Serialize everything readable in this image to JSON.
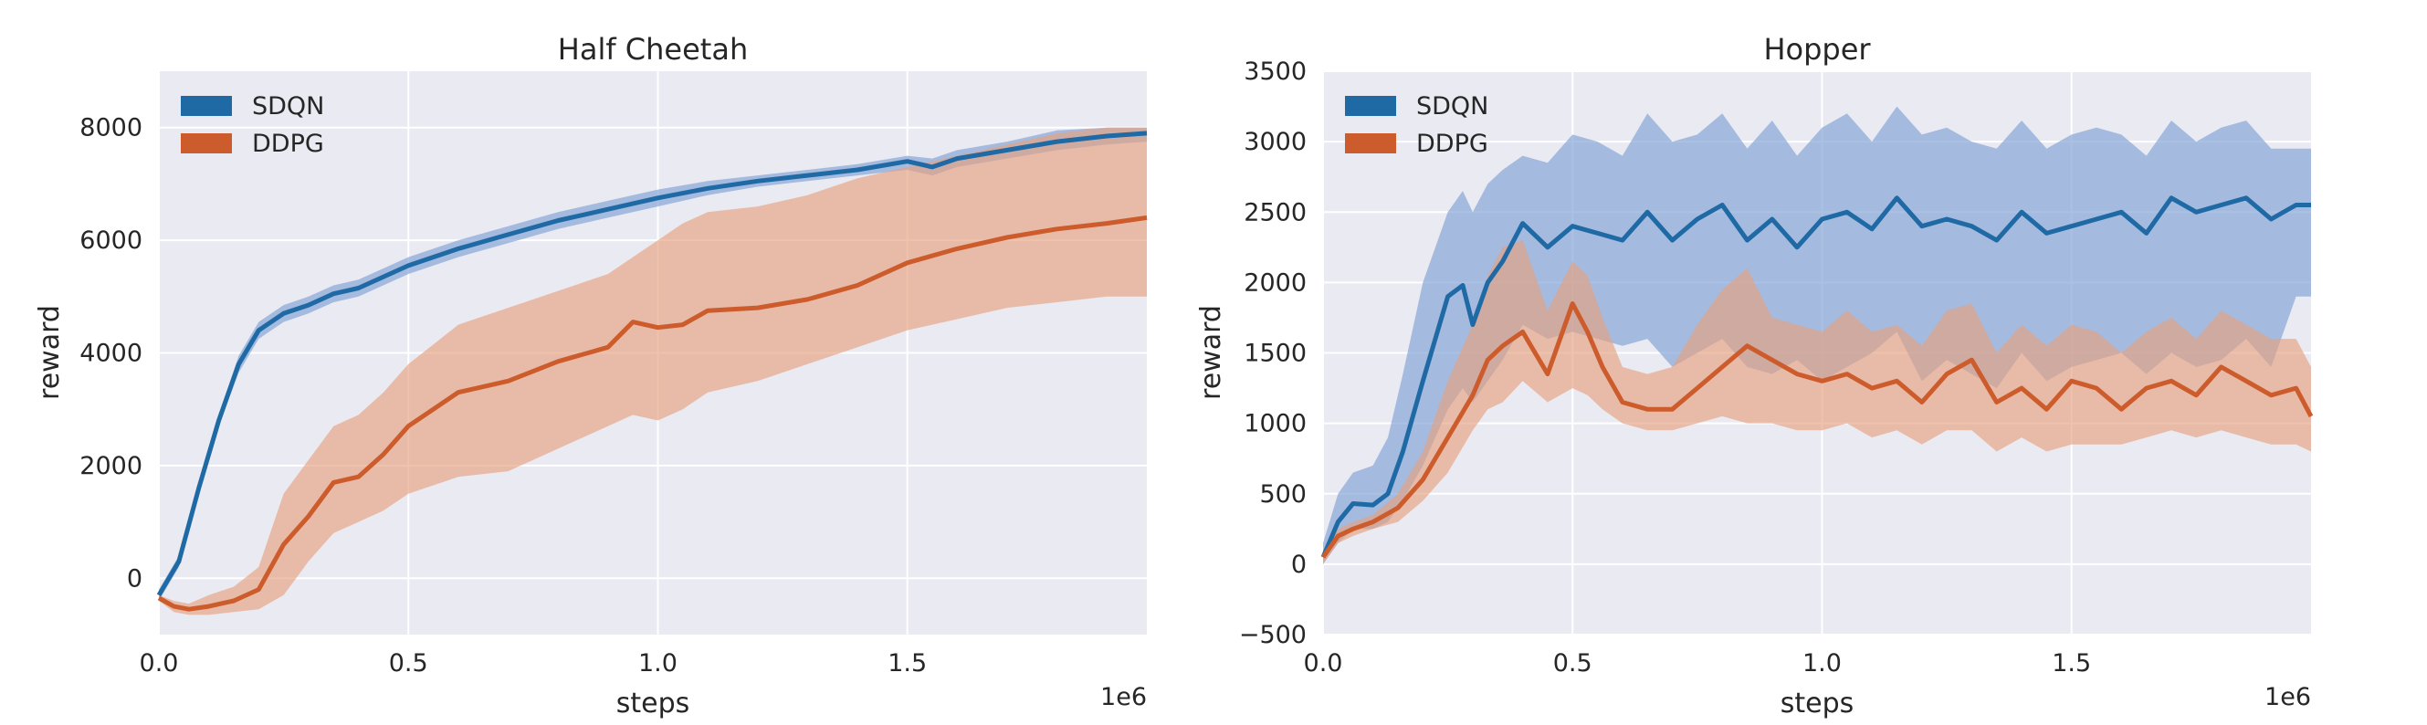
{
  "chart_data": [
    {
      "type": "line",
      "title": "Half Cheetah",
      "xlabel": "steps",
      "ylabel": "reward",
      "x_offset_label": "1e6",
      "xlim": [
        0,
        1.98
      ],
      "ylim": [
        -1000,
        9000
      ],
      "xticks": [
        0.0,
        0.5,
        1.0,
        1.5
      ],
      "xtick_labels": [
        "0.0",
        "0.5",
        "1.0",
        "1.5"
      ],
      "yticks": [
        0,
        2000,
        4000,
        6000,
        8000
      ],
      "ytick_labels": [
        "0",
        "2000",
        "4000",
        "6000",
        "8000"
      ],
      "legend_position": "top-left",
      "series": [
        {
          "name": "SDQN",
          "color": "#1f6aa5",
          "band_color": "#7e9fd4",
          "x": [
            0,
            0.04,
            0.08,
            0.12,
            0.16,
            0.2,
            0.25,
            0.3,
            0.35,
            0.4,
            0.5,
            0.6,
            0.7,
            0.8,
            0.9,
            1.0,
            1.1,
            1.2,
            1.3,
            1.4,
            1.5,
            1.55,
            1.6,
            1.7,
            1.8,
            1.9,
            1.98
          ],
          "y": [
            -300,
            300,
            1600,
            2800,
            3800,
            4400,
            4700,
            4850,
            5050,
            5150,
            5550,
            5850,
            6100,
            6350,
            6550,
            6750,
            6920,
            7050,
            7150,
            7250,
            7400,
            7300,
            7450,
            7600,
            7750,
            7850,
            7900
          ],
          "lower": [
            -400,
            200,
            1500,
            2700,
            3650,
            4250,
            4550,
            4700,
            4900,
            5000,
            5400,
            5700,
            5950,
            6200,
            6400,
            6600,
            6800,
            6950,
            7050,
            7150,
            7250,
            7150,
            7300,
            7450,
            7600,
            7700,
            7750
          ],
          "upper": [
            -200,
            400,
            1700,
            2900,
            3950,
            4550,
            4850,
            5000,
            5200,
            5300,
            5700,
            6000,
            6250,
            6500,
            6700,
            6900,
            7050,
            7150,
            7250,
            7350,
            7500,
            7450,
            7600,
            7750,
            7950,
            8000,
            8000
          ]
        },
        {
          "name": "DDPG",
          "color": "#cd5c2c",
          "band_color": "#e6a27f",
          "x": [
            0,
            0.03,
            0.06,
            0.1,
            0.15,
            0.2,
            0.25,
            0.3,
            0.35,
            0.4,
            0.45,
            0.5,
            0.55,
            0.6,
            0.7,
            0.8,
            0.9,
            0.95,
            1.0,
            1.05,
            1.1,
            1.2,
            1.3,
            1.4,
            1.5,
            1.6,
            1.7,
            1.8,
            1.9,
            1.98
          ],
          "y": [
            -350,
            -500,
            -550,
            -500,
            -400,
            -200,
            600,
            1100,
            1700,
            1800,
            2200,
            2700,
            3000,
            3300,
            3500,
            3850,
            4100,
            4550,
            4450,
            4500,
            4750,
            4800,
            4950,
            5200,
            5600,
            5850,
            6050,
            6200,
            6300,
            6400
          ],
          "lower": [
            -400,
            -600,
            -650,
            -650,
            -600,
            -550,
            -300,
            300,
            800,
            1000,
            1200,
            1500,
            1650,
            1800,
            1900,
            2300,
            2700,
            2900,
            2800,
            3000,
            3300,
            3500,
            3800,
            4100,
            4400,
            4600,
            4800,
            4900,
            5000,
            5000
          ],
          "upper": [
            -300,
            -400,
            -450,
            -300,
            -150,
            200,
            1500,
            2100,
            2700,
            2900,
            3300,
            3800,
            4150,
            4500,
            4800,
            5100,
            5400,
            5700,
            6000,
            6300,
            6500,
            6600,
            6800,
            7100,
            7300,
            7500,
            7700,
            7900,
            8000,
            8000
          ]
        }
      ]
    },
    {
      "type": "line",
      "title": "Hopper",
      "xlabel": "steps",
      "ylabel": "reward",
      "x_offset_label": "1e6",
      "xlim": [
        0,
        1.98
      ],
      "ylim": [
        -500,
        3500
      ],
      "xticks": [
        0.0,
        0.5,
        1.0,
        1.5
      ],
      "xtick_labels": [
        "0.0",
        "0.5",
        "1.0",
        "1.5"
      ],
      "yticks": [
        -500,
        0,
        500,
        1000,
        1500,
        2000,
        2500,
        3000,
        3500
      ],
      "ytick_labels": [
        "−500",
        "0",
        "500",
        "1000",
        "1500",
        "2000",
        "2500",
        "3000",
        "3500"
      ],
      "legend_position": "top-left",
      "series": [
        {
          "name": "SDQN",
          "color": "#1f6aa5",
          "band_color": "#7e9fd4",
          "x": [
            0,
            0.03,
            0.06,
            0.1,
            0.13,
            0.16,
            0.2,
            0.25,
            0.28,
            0.3,
            0.33,
            0.36,
            0.4,
            0.45,
            0.5,
            0.55,
            0.6,
            0.65,
            0.7,
            0.75,
            0.8,
            0.85,
            0.9,
            0.95,
            1.0,
            1.05,
            1.1,
            1.15,
            1.2,
            1.25,
            1.3,
            1.35,
            1.4,
            1.45,
            1.5,
            1.55,
            1.6,
            1.65,
            1.7,
            1.75,
            1.8,
            1.85,
            1.9,
            1.95,
            1.98
          ],
          "y": [
            50,
            300,
            430,
            420,
            500,
            800,
            1300,
            1900,
            1980,
            1700,
            2000,
            2150,
            2420,
            2250,
            2400,
            2350,
            2300,
            2500,
            2300,
            2450,
            2550,
            2300,
            2450,
            2250,
            2450,
            2500,
            2380,
            2600,
            2400,
            2450,
            2400,
            2300,
            2500,
            2350,
            2400,
            2450,
            2500,
            2350,
            2600,
            2500,
            2550,
            2600,
            2450,
            2550,
            2550
          ],
          "lower": [
            0,
            150,
            250,
            250,
            300,
            450,
            700,
            1100,
            1250,
            1150,
            1300,
            1450,
            1700,
            1600,
            1650,
            1600,
            1550,
            1600,
            1400,
            1500,
            1600,
            1400,
            1350,
            1450,
            1300,
            1400,
            1500,
            1650,
            1300,
            1450,
            1350,
            1250,
            1500,
            1300,
            1400,
            1450,
            1500,
            1350,
            1500,
            1400,
            1450,
            1600,
            1400,
            1900,
            1900
          ],
          "upper": [
            150,
            500,
            650,
            700,
            900,
            1350,
            2000,
            2500,
            2650,
            2500,
            2700,
            2800,
            2900,
            2850,
            3050,
            3000,
            2900,
            3200,
            3000,
            3050,
            3200,
            2950,
            3150,
            2900,
            3100,
            3200,
            3000,
            3250,
            3050,
            3100,
            3000,
            2950,
            3150,
            2950,
            3050,
            3100,
            3050,
            2900,
            3150,
            3000,
            3100,
            3150,
            2950,
            2950,
            2950
          ]
        },
        {
          "name": "DDPG",
          "color": "#cd5c2c",
          "band_color": "#e6a27f",
          "x": [
            0,
            0.03,
            0.06,
            0.1,
            0.15,
            0.2,
            0.25,
            0.3,
            0.33,
            0.36,
            0.4,
            0.45,
            0.5,
            0.53,
            0.56,
            0.6,
            0.65,
            0.7,
            0.75,
            0.8,
            0.85,
            0.9,
            0.95,
            1.0,
            1.05,
            1.1,
            1.15,
            1.2,
            1.25,
            1.3,
            1.35,
            1.4,
            1.45,
            1.5,
            1.55,
            1.6,
            1.65,
            1.7,
            1.75,
            1.8,
            1.85,
            1.9,
            1.95,
            1.98
          ],
          "y": [
            50,
            200,
            250,
            300,
            400,
            600,
            900,
            1200,
            1450,
            1550,
            1650,
            1350,
            1850,
            1650,
            1400,
            1150,
            1100,
            1100,
            1250,
            1400,
            1550,
            1450,
            1350,
            1300,
            1350,
            1250,
            1300,
            1150,
            1350,
            1450,
            1150,
            1250,
            1100,
            1300,
            1250,
            1100,
            1250,
            1300,
            1200,
            1400,
            1300,
            1200,
            1250,
            1050
          ],
          "lower": [
            0,
            150,
            200,
            250,
            300,
            450,
            650,
            950,
            1100,
            1150,
            1300,
            1150,
            1250,
            1200,
            1100,
            1000,
            950,
            950,
            1000,
            1050,
            1000,
            1000,
            950,
            950,
            1000,
            900,
            950,
            850,
            950,
            950,
            800,
            900,
            800,
            850,
            850,
            850,
            900,
            950,
            900,
            950,
            900,
            850,
            850,
            800
          ],
          "upper": [
            100,
            250,
            300,
            350,
            500,
            800,
            1300,
            1700,
            2050,
            2250,
            2300,
            1800,
            2150,
            2050,
            1750,
            1400,
            1350,
            1400,
            1700,
            1950,
            2100,
            1750,
            1700,
            1650,
            1800,
            1650,
            1700,
            1550,
            1800,
            1850,
            1500,
            1700,
            1550,
            1700,
            1650,
            1500,
            1650,
            1750,
            1600,
            1800,
            1700,
            1600,
            1600,
            1400
          ]
        }
      ]
    }
  ]
}
